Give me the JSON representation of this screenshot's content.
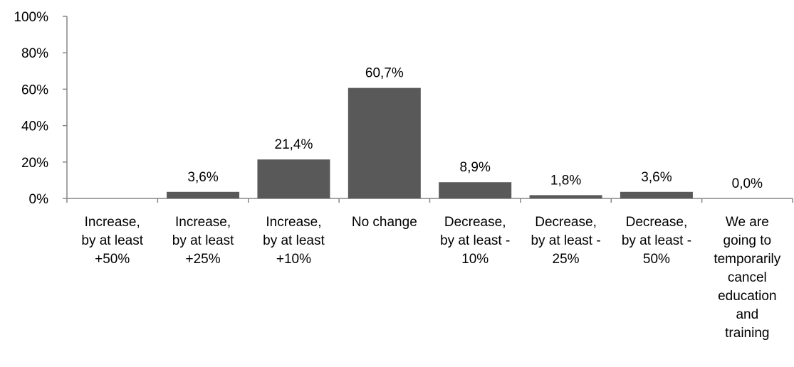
{
  "chart_data": {
    "type": "bar",
    "categories": [
      [
        "Increase,",
        "by at least",
        "+50%"
      ],
      [
        "Increase,",
        "by at least",
        "+25%"
      ],
      [
        "Increase,",
        "by at least",
        "+10%"
      ],
      [
        "No change"
      ],
      [
        "Decrease,",
        "by at least -",
        "10%"
      ],
      [
        "Decrease,",
        "by at least -",
        "25%"
      ],
      [
        "Decrease,",
        "by at least -",
        "50%"
      ],
      [
        "We are",
        "going to",
        "temporarily",
        "cancel",
        "education",
        "and",
        "training"
      ]
    ],
    "values": [
      0.0,
      3.6,
      21.4,
      60.7,
      8.9,
      1.8,
      3.6,
      0.0
    ],
    "data_labels": [
      "",
      "3,6%",
      "21,4%",
      "60,7%",
      "8,9%",
      "1,8%",
      "3,6%",
      "0,0%"
    ],
    "ylim": [
      0,
      100
    ],
    "y_ticks": [
      0,
      20,
      40,
      60,
      80,
      100
    ],
    "y_tick_labels": [
      "0%",
      "20%",
      "40%",
      "60%",
      "80%",
      "100%"
    ],
    "title": "",
    "xlabel": "",
    "ylabel": "",
    "grid": false,
    "legend": "none",
    "colors": {
      "bar": "#595959",
      "axis": "#868686",
      "text": "#000000"
    }
  }
}
